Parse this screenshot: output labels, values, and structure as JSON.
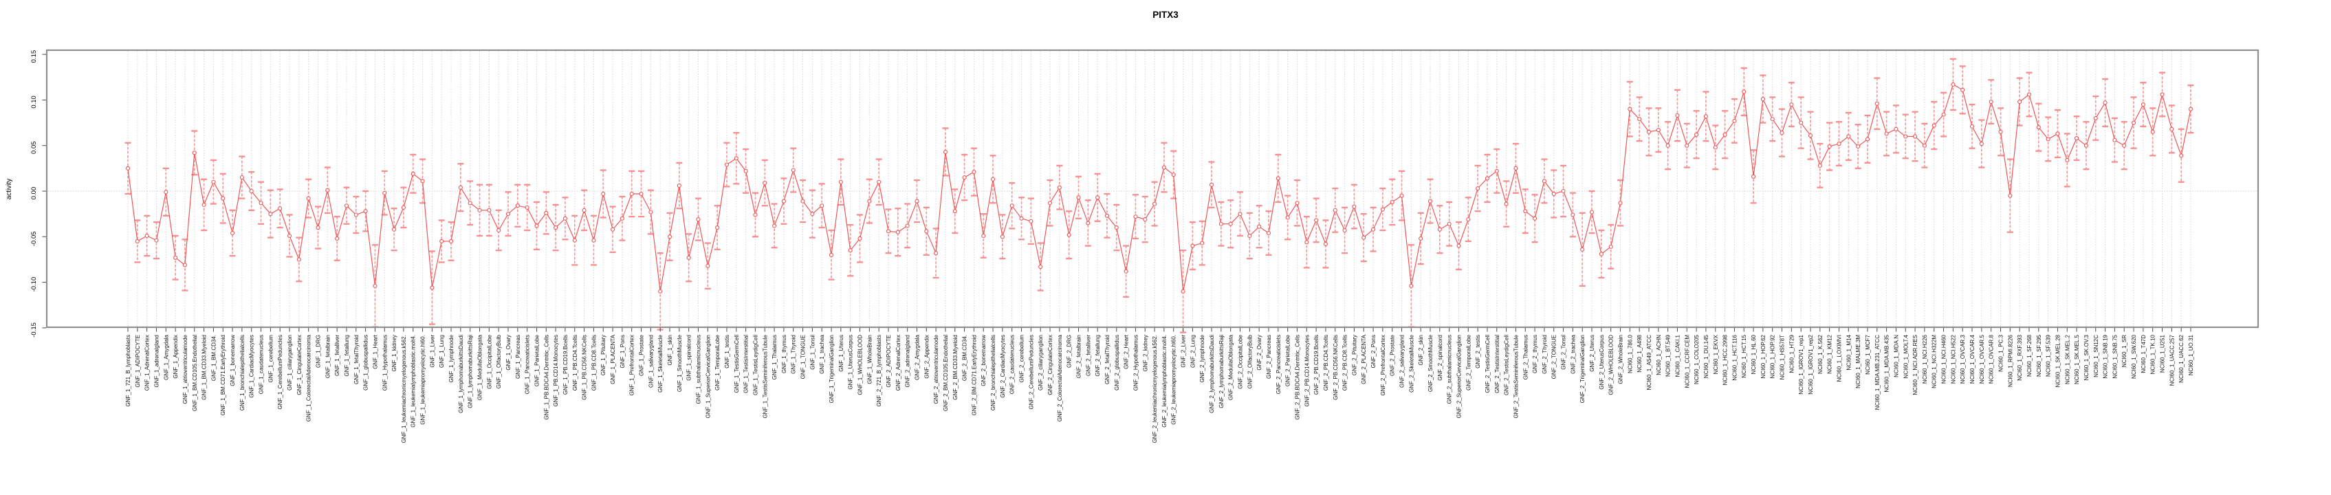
{
  "chart_data": {
    "type": "line",
    "subtype": "points-with-error-bars",
    "title": "PITX3",
    "xlabel": "",
    "ylabel": "activity",
    "ylim": [
      -0.15,
      0.15
    ],
    "ytick_labels": [
      "0.15",
      "0.10",
      "0.05",
      "0.00",
      "-0.05",
      "-0.10",
      "-0.15"
    ],
    "ytick_values": [
      0.15,
      0.1,
      0.05,
      0.0,
      -0.05,
      -0.1,
      -0.15
    ],
    "grid": "dotted vertical gridline per category; dotted horizontal line at 0",
    "legend_position": "none",
    "colors": {
      "series": "#ef4f4f",
      "error_bar": "#f58f8f",
      "gridline": "#d6d6d6",
      "zero_line": "#cfcfcf",
      "box": "#8f8f8f",
      "tick": "#444444",
      "label_text": "#111111"
    },
    "groups": [
      {
        "prefix": "GNF_1_",
        "samples": [
          "721_B_lymphoblasts",
          "ADIPOCYTE",
          "AdrenalCortex",
          "adrenalgland",
          "Amygdala",
          "Appendix",
          "atrioventricularnode",
          "BM.CD105.Endothelial",
          "BM.CD33.Myeloid",
          "BM.CD34.",
          "BM.CD71.EarlyErythroid",
          "bonemarrow",
          "bronchialepithelialcells",
          "CardiacMyocytes",
          "caudatenucleus",
          "cerebellum",
          "CerebellumPeduncles",
          "ciliaryganglion",
          "CingulateCortex",
          "ColorectalAdenocarcinoma",
          "DRG",
          "fetalbrain",
          "fetalliver",
          "fetallung",
          "fetalThyroid",
          "globuspallidus",
          "Heart",
          "Hypothalamus",
          "kidney",
          "leukemiachronicmyelogenous.k562.",
          "leukemialymphoblastic.molt4.",
          "leukemiapromyelocytic.hl60.",
          "Liver",
          "Lung",
          "lymphnode",
          "lymphomaburkittsDaudi",
          "lymphomaburkittsRaji",
          "MedullaOblongata",
          "OccipitalLobe",
          "OlfactoryBulb",
          "Ovary",
          "Pancreas",
          "Pancreaticislets",
          "ParietalLobe",
          "PB.BDCA4.Dentritic_Cells",
          "PB.CD14.Monocytes",
          "PB.CD19.Bcells",
          "PB.CD4.Tcells",
          "PB.CD56.NKCells",
          "PB.CD8.Tcells",
          "Pituitary",
          "PLACENTA",
          "Pons",
          "PrefrontalCortex",
          "Prostate",
          "salivarygland",
          "SkeletalMuscle",
          "skin",
          "SmoothMuscle",
          "spinalcord",
          "subthalamicnucleus",
          "SuperiorCervicalGanglion",
          "TemporalLobe",
          "testis",
          "TestisGermCell",
          "TestisInterstitial",
          "TestisLeydigCell",
          "TestisSeminiferousTubule",
          "Thalamus",
          "thymus",
          "Thyroid",
          "TONGUE",
          "Tonsil",
          "trachea",
          "TrigeminalGanglion",
          "Uterus",
          "UterusCorpus",
          "WHOLEBLOOD",
          "WholeBrain"
        ],
        "values": [
          0.025,
          -0.055,
          -0.049,
          -0.054,
          -0.001,
          -0.073,
          -0.081,
          0.042,
          -0.015,
          0.01,
          -0.008,
          -0.046,
          0.015,
          0.0,
          -0.013,
          -0.025,
          -0.019,
          -0.049,
          -0.075,
          -0.008,
          -0.04,
          0.001,
          -0.052,
          -0.016,
          -0.026,
          -0.022,
          -0.104,
          -0.002,
          -0.042,
          -0.018,
          0.019,
          0.011,
          -0.106,
          -0.055,
          -0.055,
          0.004,
          -0.013,
          -0.021,
          -0.021,
          -0.043,
          -0.025,
          -0.016,
          -0.018,
          -0.038,
          -0.024,
          -0.04,
          -0.03,
          -0.054,
          -0.021,
          -0.054,
          -0.003,
          -0.042,
          -0.03,
          -0.003,
          -0.003,
          -0.023,
          -0.11,
          -0.05,
          0.006,
          -0.073,
          -0.031,
          -0.082,
          -0.04,
          0.029,
          0.036,
          0.022,
          -0.026,
          0.009,
          -0.038,
          -0.011,
          0.023,
          -0.011,
          -0.025,
          -0.016,
          -0.07,
          0.01,
          -0.065,
          -0.052,
          -0.011
        ],
        "errors": [
          0.028,
          0.023,
          0.022,
          0.02,
          0.026,
          0.024,
          0.028,
          0.024,
          0.028,
          0.024,
          0.027,
          0.025,
          0.023,
          0.021,
          0.023,
          0.026,
          0.021,
          0.023,
          0.024,
          0.021,
          0.023,
          0.025,
          0.024,
          0.02,
          0.02,
          0.022,
          0.045,
          0.024,
          0.023,
          0.022,
          0.021,
          0.024,
          0.04,
          0.023,
          0.021,
          0.026,
          0.024,
          0.028,
          0.028,
          0.022,
          0.024,
          0.023,
          0.025,
          0.026,
          0.023,
          0.025,
          0.023,
          0.027,
          0.022,
          0.027,
          0.026,
          0.025,
          0.024,
          0.025,
          0.025,
          0.024,
          0.042,
          0.026,
          0.025,
          0.026,
          0.023,
          0.025,
          0.024,
          0.024,
          0.028,
          0.024,
          0.024,
          0.025,
          0.024,
          0.025,
          0.024,
          0.023,
          0.026,
          0.024,
          0.027,
          0.025,
          0.028,
          0.026,
          0.024
        ]
      },
      {
        "prefix": "GNF_2_",
        "samples": [
          "721_B_lymphoblasts",
          "ADIPOCYTE",
          "AdrenalCortex",
          "adrenalgland",
          "Amygdala",
          "Appendix",
          "atrioventricularnode",
          "BM.CD105.Endothelial",
          "BM.CD33.Myeloid",
          "BM.CD34.",
          "BM.CD71.EarlyErythroid",
          "bonemarrow",
          "bronchialepithelialcells",
          "CardiacMyocytes",
          "caudatenucleus",
          "cerebellum",
          "CerebellumPeduncles",
          "ciliaryganglion",
          "CingulateCortex",
          "ColorectalAdenocarcinoma",
          "DRG",
          "fetalbrain",
          "fetalliver",
          "fetallung",
          "fetalThyroid",
          "globuspallidus",
          "Heart",
          "Hypothalamus",
          "kidney",
          "leukemiachronicmyelogenous.k562.",
          "leukemialymphoblastic.molt4.",
          "leukemiapromyelocytic.hl60.",
          "Liver",
          "Lung",
          "lymphnode",
          "lymphomaburkittsDaudi",
          "lymphomaburkittsRaji",
          "MedullaOblongata",
          "OccipitalLobe",
          "OlfactoryBulb",
          "Ovary",
          "Pancreas",
          "Pancreaticislets",
          "ParietalLobe",
          "PB.BDCA4.Dentritic_Cells",
          "PB.CD14.Monocytes",
          "PB.CD19.Bcells",
          "PB.CD4.Tcells",
          "PB.CD56.NKCells",
          "PB.CD8.Tcells",
          "Pituitary",
          "PLACENTA",
          "Pons",
          "PrefrontalCortex",
          "Prostate",
          "salivarygland",
          "SkeletalMuscle",
          "skin",
          "SmoothMuscle",
          "spinalcord",
          "subthalamicnucleus",
          "SuperiorCervicalGanglion",
          "TemporalLobe",
          "testis",
          "TestisGermCell",
          "TestisInterstitial",
          "TestisLeydigCell",
          "TestisSeminiferousTubule",
          "Thalamus",
          "thymus",
          "Thyroid",
          "TONGUE",
          "Tonsil",
          "trachea",
          "TrigeminalGanglion",
          "Uterus",
          "UterusCorpus",
          "WHOLEBLOOD",
          "WholeBrain"
        ],
        "values": [
          0.01,
          -0.044,
          -0.045,
          -0.038,
          -0.011,
          -0.044,
          -0.068,
          0.043,
          -0.022,
          0.015,
          0.021,
          -0.049,
          0.013,
          -0.05,
          -0.016,
          -0.03,
          -0.033,
          -0.083,
          -0.013,
          0.004,
          -0.048,
          -0.007,
          -0.035,
          -0.007,
          -0.027,
          -0.04,
          -0.088,
          -0.028,
          -0.031,
          -0.014,
          0.026,
          0.018,
          -0.11,
          -0.06,
          -0.057,
          0.007,
          -0.036,
          -0.036,
          -0.025,
          -0.049,
          -0.039,
          -0.046,
          0.014,
          -0.029,
          -0.013,
          -0.056,
          -0.032,
          -0.058,
          -0.021,
          -0.043,
          -0.017,
          -0.051,
          -0.042,
          -0.02,
          -0.012,
          -0.005,
          -0.104,
          -0.052,
          -0.011,
          -0.042,
          -0.036,
          -0.06,
          -0.031,
          0.003,
          0.014,
          0.022,
          -0.014,
          0.025,
          -0.022,
          -0.03,
          0.011,
          -0.003,
          0.0,
          -0.026,
          -0.064,
          -0.023,
          -0.069,
          -0.061,
          -0.013
        ],
        "errors": [
          0.025,
          0.024,
          0.026,
          0.024,
          0.023,
          0.026,
          0.027,
          0.026,
          0.024,
          0.025,
          0.026,
          0.024,
          0.026,
          0.024,
          0.025,
          0.023,
          0.025,
          0.026,
          0.025,
          0.024,
          0.026,
          0.023,
          0.025,
          0.026,
          0.024,
          0.025,
          0.028,
          0.024,
          0.025,
          0.024,
          0.027,
          0.026,
          0.045,
          0.026,
          0.024,
          0.025,
          0.024,
          0.026,
          0.024,
          0.025,
          0.023,
          0.024,
          0.026,
          0.024,
          0.025,
          0.028,
          0.024,
          0.026,
          0.024,
          0.025,
          0.024,
          0.026,
          0.024,
          0.023,
          0.025,
          0.027,
          0.045,
          0.028,
          0.024,
          0.026,
          0.024,
          0.026,
          0.024,
          0.025,
          0.026,
          0.024,
          0.025,
          0.027,
          0.024,
          0.026,
          0.024,
          0.026,
          0.028,
          0.024,
          0.04,
          0.023,
          0.026,
          0.024,
          0.025
        ]
      },
      {
        "prefix": "NCI60_1_",
        "samples": [
          "786.0",
          "A498",
          "A549_ATCC",
          "ACHN",
          "BT.549",
          "CAKI.1",
          "CCRF.CEM",
          "COLO205",
          "DU.145",
          "EKVX",
          "HCC.2998",
          "HCT.116",
          "HCT.15",
          "HL.60",
          "HOP.62",
          "HOP.92",
          "HS578T",
          "HT29",
          "IGROV1_rep1",
          "IGROV1_rep2",
          "K.562",
          "KM12",
          "LOXIMVI",
          "M14",
          "MALME.3M",
          "MCF7",
          "MDA.MB.231_ATCC",
          "MDA.MB.435",
          "MDA.N",
          "MOLT.4",
          "NCI.ADR.RES",
          "NCI.H226",
          "NCI.H322M",
          "NCI.H460",
          "NCI.H522",
          "OVCAR.3",
          "OVCAR.4",
          "OVCAR.5",
          "OVCAR.8",
          "PC.3",
          "RPMI.8226",
          "RXF.393",
          "SF.268",
          "SF.295",
          "SF.539",
          "SK.MEL.28",
          "SK.MEL.2",
          "SK.MEL.5",
          "SK.OV.3",
          "SN12C",
          "SNB.19",
          "SNB.75",
          "SR",
          "SW.620",
          "T47D",
          "TK.10",
          "U251",
          "UACC.257",
          "UACC.62",
          "UO.31"
        ],
        "values": [
          0.09,
          0.079,
          0.065,
          0.067,
          0.05,
          0.083,
          0.05,
          0.062,
          0.082,
          0.048,
          0.062,
          0.077,
          0.109,
          0.016,
          0.101,
          0.079,
          0.064,
          0.095,
          0.075,
          0.061,
          0.028,
          0.049,
          0.052,
          0.06,
          0.049,
          0.057,
          0.096,
          0.063,
          0.068,
          0.06,
          0.06,
          0.05,
          0.072,
          0.084,
          0.117,
          0.111,
          0.071,
          0.052,
          0.098,
          0.065,
          -0.005,
          0.098,
          0.106,
          0.07,
          0.057,
          0.063,
          0.034,
          0.058,
          0.05,
          0.08,
          0.097,
          0.056,
          0.05,
          0.075,
          0.095,
          0.065,
          0.106,
          0.068,
          0.039,
          0.09
        ],
        "errors": [
          0.03,
          0.024,
          0.026,
          0.024,
          0.026,
          0.028,
          0.024,
          0.026,
          0.027,
          0.024,
          0.026,
          0.024,
          0.026,
          0.029,
          0.026,
          0.024,
          0.026,
          0.024,
          0.028,
          0.026,
          0.024,
          0.026,
          0.024,
          0.026,
          0.024,
          0.026,
          0.028,
          0.024,
          0.026,
          0.024,
          0.027,
          0.024,
          0.026,
          0.024,
          0.028,
          0.026,
          0.024,
          0.026,
          0.024,
          0.026,
          0.04,
          0.026,
          0.024,
          0.026,
          0.024,
          0.026,
          0.029,
          0.024,
          0.026,
          0.024,
          0.026,
          0.024,
          0.026,
          0.028,
          0.024,
          0.026,
          0.024,
          0.026,
          0.029,
          0.026
        ]
      }
    ]
  }
}
